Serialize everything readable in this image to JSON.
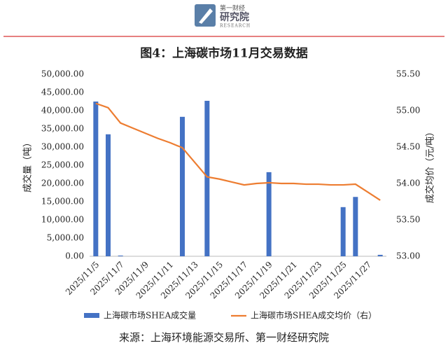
{
  "header": {
    "brand": "第一财经",
    "brand2": "研究院",
    "brand3": "RESEARCH"
  },
  "chart_data": {
    "type": "bar_line",
    "title": "图4：上海碳市场11月交易数据",
    "ylabel": "成交量（吨）",
    "y2label": "成交均价（元/吨）",
    "categories": [
      "2025/11/5",
      null,
      "2025/11/7",
      null,
      "2025/11/9",
      null,
      "2025/11/11",
      null,
      "2025/11/13",
      null,
      "2025/11/15",
      null,
      "2025/11/17",
      null,
      "2025/11/19",
      null,
      "2025/11/21",
      null,
      "2025/11/23",
      null,
      "2025/11/25",
      null,
      "2025/11/27",
      null
    ],
    "series": [
      {
        "name": "上海碳市场SHEA成交量",
        "color": "#4472c4",
        "kind": "bar",
        "values": [
          42500,
          33500,
          200,
          null,
          null,
          null,
          null,
          38300,
          null,
          42700,
          null,
          null,
          null,
          null,
          23100,
          null,
          null,
          null,
          null,
          null,
          13500,
          16300,
          null,
          400
        ]
      },
      {
        "name": "上海碳市场SHEA成交均价（右）",
        "color": "#ed7d31",
        "kind": "line",
        "axis": "y2",
        "values": [
          55.1,
          55.04,
          54.83,
          54.76,
          54.69,
          54.62,
          54.56,
          54.49,
          54.29,
          54.09,
          54.06,
          54.02,
          53.98,
          54.0,
          54.01,
          54.0,
          54.0,
          53.99,
          53.99,
          53.98,
          53.98,
          53.99,
          53.88,
          53.77
        ]
      }
    ],
    "ylim": [
      0,
      50000
    ],
    "yticks": [
      {
        "value": 0,
        "label": "0.00"
      },
      {
        "value": 5000,
        "label": "5,000.00"
      },
      {
        "value": 10000,
        "label": "10,000.00"
      },
      {
        "value": 15000,
        "label": "15,000.00"
      },
      {
        "value": 20000,
        "label": "20,000.00"
      },
      {
        "value": 25000,
        "label": "25,000.00"
      },
      {
        "value": 30000,
        "label": "30,000.00"
      },
      {
        "value": 35000,
        "label": "35,000.00"
      },
      {
        "value": 40000,
        "label": "40,000.00"
      },
      {
        "value": 45000,
        "label": "45,000.00"
      },
      {
        "value": 50000,
        "label": "50,000.00"
      }
    ],
    "y2lim": [
      53,
      55.5
    ],
    "y2ticks": [
      {
        "value": 53,
        "label": "53.00"
      },
      {
        "value": 53.5,
        "label": "53.50"
      },
      {
        "value": 54,
        "label": "54.00"
      },
      {
        "value": 54.5,
        "label": "54.50"
      },
      {
        "value": 55,
        "label": "55.00"
      },
      {
        "value": 55.5,
        "label": "55.50"
      }
    ],
    "source": "来源：上海环境能源交易所、第一财经研究院"
  }
}
